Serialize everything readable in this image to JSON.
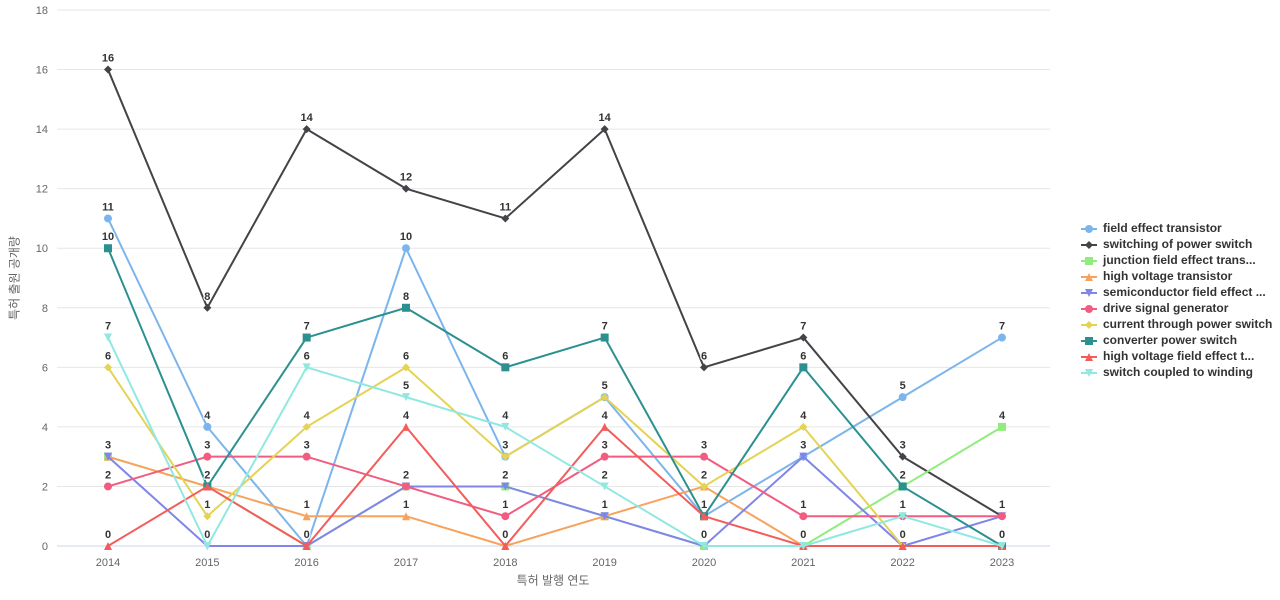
{
  "chart_data": {
    "type": "line",
    "title": "",
    "xlabel": "특허 발행 연도",
    "ylabel": "특허 출원 공개량",
    "x": [
      2014,
      2015,
      2016,
      2017,
      2018,
      2019,
      2020,
      2021,
      2022,
      2023
    ],
    "ylim": [
      0,
      18
    ],
    "ytick_step": 2,
    "grid": true,
    "legend_position": "right",
    "grid_color": "#e6e6e6",
    "axis_line_color": "#ccd6eb",
    "tick_text_color": "#666666",
    "data_label_color": "#333333",
    "series": [
      {
        "name": "field effect transistor",
        "color": "#7cb5ec",
        "marker": "circle",
        "values": [
          11,
          4,
          0,
          10,
          3,
          5,
          1,
          3,
          5,
          7
        ]
      },
      {
        "name": "switching of power switch",
        "color": "#434348",
        "marker": "diamond",
        "values": [
          16,
          8,
          14,
          12,
          11,
          14,
          6,
          7,
          3,
          1
        ]
      },
      {
        "name": "junction field effect trans...",
        "color": "#90ed7d",
        "marker": "square",
        "values": [
          3,
          2,
          0,
          2,
          2,
          1,
          0,
          0,
          2,
          4
        ]
      },
      {
        "name": "high voltage transistor",
        "color": "#f7a35c",
        "marker": "triangle",
        "values": [
          3,
          2,
          1,
          1,
          0,
          1,
          2,
          0,
          0,
          0
        ]
      },
      {
        "name": "semiconductor field effect ...",
        "color": "#8085e9",
        "marker": "triangle-down",
        "values": [
          3,
          0,
          0,
          2,
          2,
          1,
          0,
          3,
          0,
          1
        ]
      },
      {
        "name": "drive signal generator",
        "color": "#f15c80",
        "marker": "circle",
        "values": [
          2,
          3,
          3,
          2,
          1,
          3,
          3,
          1,
          1,
          1
        ]
      },
      {
        "name": "current through power switch",
        "color": "#e4d354",
        "marker": "diamond",
        "values": [
          6,
          1,
          4,
          6,
          3,
          5,
          2,
          4,
          0,
          0
        ]
      },
      {
        "name": "converter power switch",
        "color": "#2b908f",
        "marker": "square",
        "values": [
          10,
          2,
          7,
          8,
          6,
          7,
          1,
          6,
          2,
          0
        ]
      },
      {
        "name": "high voltage field effect t...",
        "color": "#f45b5b",
        "marker": "triangle",
        "values": [
          0,
          2,
          0,
          4,
          0,
          4,
          1,
          0,
          0,
          0
        ]
      },
      {
        "name": "switch coupled to winding",
        "color": "#91e8e1",
        "marker": "triangle-down",
        "values": [
          7,
          0,
          6,
          5,
          4,
          2,
          0,
          0,
          1,
          0
        ]
      }
    ]
  }
}
